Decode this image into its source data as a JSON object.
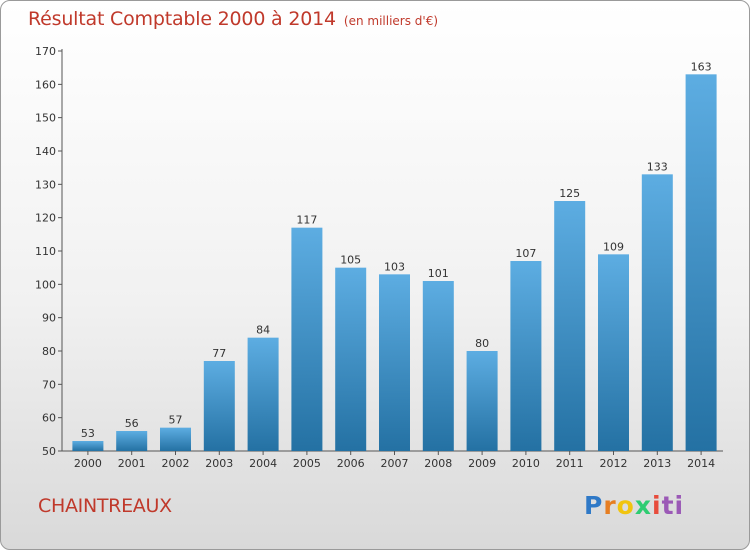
{
  "header": {
    "title": "Résultat Comptable 2000 à 2014",
    "unit": "(en milliers d'€)"
  },
  "commune": "CHAINTREAUX",
  "brand": {
    "text": "Proxiti",
    "letters": [
      "P",
      "r",
      "o",
      "x",
      "i",
      "ti"
    ]
  },
  "colors": {
    "title": "#c0392b",
    "bar_light": "#5dade2",
    "bar_dark": "#2471a3"
  },
  "chart_data": {
    "type": "bar",
    "title": "Résultat Comptable 2000 à 2014",
    "xlabel": "",
    "ylabel": "",
    "categories": [
      "2000",
      "2001",
      "2002",
      "2003",
      "2004",
      "2005",
      "2006",
      "2007",
      "2008",
      "2009",
      "2010",
      "2011",
      "2012",
      "2013",
      "2014"
    ],
    "values": [
      53,
      56,
      57,
      77,
      84,
      117,
      105,
      103,
      101,
      80,
      107,
      125,
      109,
      133,
      163
    ],
    "ylim": [
      50,
      170
    ],
    "yticks": [
      50,
      60,
      70,
      80,
      90,
      100,
      110,
      120,
      130,
      140,
      150,
      160,
      170
    ],
    "grid": false,
    "data_labels": true
  }
}
